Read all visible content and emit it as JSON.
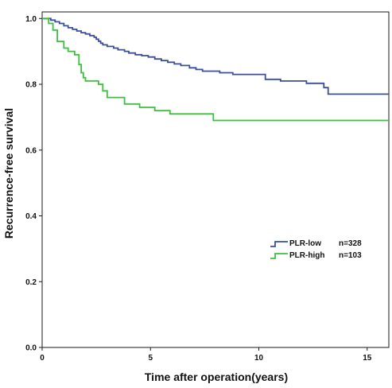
{
  "chart_data": {
    "type": "line",
    "title": "",
    "xlabel": "Time after operation(years)",
    "ylabel": "Recurrence-free survival",
    "xlim": [
      0,
      16
    ],
    "ylim": [
      0,
      1.02
    ],
    "x_ticks": [
      0,
      5,
      10,
      15
    ],
    "x_tick_labels": [
      "0",
      "5",
      "10",
      "15"
    ],
    "y_ticks": [
      0,
      0.2,
      0.4,
      0.6,
      0.8,
      1.0
    ],
    "y_tick_labels": [
      "0.0",
      "0.2",
      "0.4",
      "0.6",
      "0.8",
      "1.0"
    ],
    "grid": false,
    "legend_position": "right",
    "series": [
      {
        "name": "PLR-low",
        "n_label": "n=328",
        "color": "#3a4f9a",
        "step": true,
        "points": [
          [
            0,
            1.0
          ],
          [
            0.4,
            0.995
          ],
          [
            0.6,
            0.99
          ],
          [
            0.8,
            0.985
          ],
          [
            1.0,
            0.978
          ],
          [
            1.2,
            0.972
          ],
          [
            1.4,
            0.967
          ],
          [
            1.6,
            0.962
          ],
          [
            1.8,
            0.957
          ],
          [
            2.0,
            0.953
          ],
          [
            2.2,
            0.948
          ],
          [
            2.4,
            0.943
          ],
          [
            2.5,
            0.937
          ],
          [
            2.6,
            0.931
          ],
          [
            2.7,
            0.925
          ],
          [
            2.8,
            0.92
          ],
          [
            3.0,
            0.915
          ],
          [
            3.3,
            0.91
          ],
          [
            3.5,
            0.905
          ],
          [
            3.8,
            0.9
          ],
          [
            4.0,
            0.895
          ],
          [
            4.3,
            0.89
          ],
          [
            4.6,
            0.887
          ],
          [
            4.9,
            0.883
          ],
          [
            5.2,
            0.877
          ],
          [
            5.5,
            0.872
          ],
          [
            5.8,
            0.867
          ],
          [
            6.1,
            0.862
          ],
          [
            6.4,
            0.857
          ],
          [
            6.8,
            0.85
          ],
          [
            7.1,
            0.845
          ],
          [
            7.4,
            0.84
          ],
          [
            7.9,
            0.84
          ],
          [
            8.2,
            0.835
          ],
          [
            8.8,
            0.83
          ],
          [
            9.3,
            0.83
          ],
          [
            10.3,
            0.815
          ],
          [
            11.0,
            0.81
          ],
          [
            12.2,
            0.803
          ],
          [
            13.0,
            0.79
          ],
          [
            13.2,
            0.77
          ],
          [
            16.0,
            0.77
          ]
        ]
      },
      {
        "name": "PLR-high",
        "n_label": "n=103",
        "color": "#3fbf3f",
        "step": true,
        "points": [
          [
            0,
            1.0
          ],
          [
            0.3,
            0.985
          ],
          [
            0.5,
            0.965
          ],
          [
            0.7,
            0.93
          ],
          [
            1.0,
            0.91
          ],
          [
            1.2,
            0.9
          ],
          [
            1.5,
            0.89
          ],
          [
            1.7,
            0.86
          ],
          [
            1.8,
            0.835
          ],
          [
            1.9,
            0.82
          ],
          [
            2.0,
            0.81
          ],
          [
            2.6,
            0.8
          ],
          [
            2.8,
            0.78
          ],
          [
            3.0,
            0.76
          ],
          [
            3.5,
            0.76
          ],
          [
            3.8,
            0.74
          ],
          [
            4.0,
            0.74
          ],
          [
            4.5,
            0.73
          ],
          [
            5.2,
            0.72
          ],
          [
            5.9,
            0.71
          ],
          [
            7.0,
            0.71
          ],
          [
            7.9,
            0.69
          ],
          [
            16.0,
            0.69
          ]
        ]
      }
    ]
  }
}
